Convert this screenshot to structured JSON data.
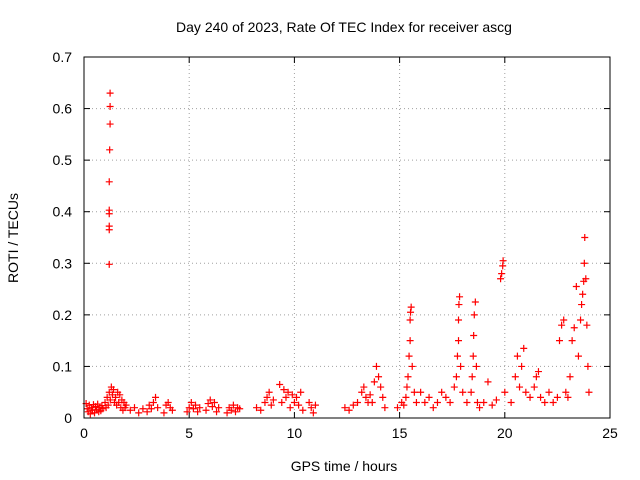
{
  "chart_data": {
    "type": "scatter",
    "title": "Day 240 of 2023, Rate Of TEC Index for receiver ascg",
    "xlabel": "GPS time / hours",
    "ylabel": "ROTI / TECUs",
    "xlim": [
      0,
      25
    ],
    "ylim": [
      0,
      0.7
    ],
    "xticks": [
      0,
      5,
      10,
      15,
      20,
      25
    ],
    "yticks": [
      0,
      0.1,
      0.2,
      0.3,
      0.4,
      0.5,
      0.6,
      0.7
    ],
    "xtick_labels": [
      "0",
      "5",
      "10",
      "15",
      "20",
      "25"
    ],
    "ytick_labels": [
      "0",
      "0.1",
      "0.2",
      "0.3",
      "0.4",
      "0.5",
      "0.6",
      "0.7"
    ],
    "grid": true,
    "marker": "+",
    "colors": {
      "points": "#ff0000",
      "grid": "#a0a0a0",
      "axes": "#000000"
    },
    "series": [
      {
        "name": "ROTI",
        "points": [
          [
            0.1,
            0.028
          ],
          [
            0.15,
            0.018
          ],
          [
            0.2,
            0.012
          ],
          [
            0.25,
            0.025
          ],
          [
            0.3,
            0.008
          ],
          [
            0.35,
            0.02
          ],
          [
            0.4,
            0.015
          ],
          [
            0.45,
            0.026
          ],
          [
            0.5,
            0.01
          ],
          [
            0.55,
            0.022
          ],
          [
            0.6,
            0.016
          ],
          [
            0.65,
            0.027
          ],
          [
            0.7,
            0.012
          ],
          [
            0.75,
            0.02
          ],
          [
            0.8,
            0.014
          ],
          [
            0.85,
            0.024
          ],
          [
            0.9,
            0.018
          ],
          [
            1.0,
            0.03
          ],
          [
            1.05,
            0.02
          ],
          [
            1.1,
            0.04
          ],
          [
            1.15,
            0.025
          ],
          [
            1.2,
            0.05
          ],
          [
            1.25,
            0.035
          ],
          [
            1.3,
            0.06
          ],
          [
            1.35,
            0.045
          ],
          [
            1.4,
            0.055
          ],
          [
            1.45,
            0.03
          ],
          [
            1.5,
            0.04
          ],
          [
            1.55,
            0.025
          ],
          [
            1.6,
            0.05
          ],
          [
            1.65,
            0.03
          ],
          [
            1.7,
            0.045
          ],
          [
            1.75,
            0.02
          ],
          [
            1.8,
            0.035
          ],
          [
            1.85,
            0.015
          ],
          [
            1.9,
            0.03
          ],
          [
            1.95,
            0.02
          ],
          [
            2.0,
            0.025
          ],
          [
            1.2,
            0.298
          ],
          [
            1.2,
            0.365
          ],
          [
            1.2,
            0.372
          ],
          [
            1.2,
            0.396
          ],
          [
            1.2,
            0.403
          ],
          [
            1.2,
            0.458
          ],
          [
            1.22,
            0.52
          ],
          [
            1.24,
            0.57
          ],
          [
            1.24,
            0.604
          ],
          [
            1.24,
            0.63
          ],
          [
            2.2,
            0.015
          ],
          [
            2.4,
            0.02
          ],
          [
            2.6,
            0.01
          ],
          [
            2.8,
            0.018
          ],
          [
            3.0,
            0.012
          ],
          [
            3.1,
            0.025
          ],
          [
            3.2,
            0.018
          ],
          [
            3.3,
            0.03
          ],
          [
            3.4,
            0.04
          ],
          [
            3.5,
            0.02
          ],
          [
            3.8,
            0.01
          ],
          [
            3.9,
            0.025
          ],
          [
            4.0,
            0.03
          ],
          [
            4.1,
            0.02
          ],
          [
            4.2,
            0.015
          ],
          [
            4.9,
            0.012
          ],
          [
            5.0,
            0.02
          ],
          [
            5.1,
            0.03
          ],
          [
            5.2,
            0.018
          ],
          [
            5.3,
            0.025
          ],
          [
            5.4,
            0.012
          ],
          [
            5.5,
            0.02
          ],
          [
            5.8,
            0.015
          ],
          [
            5.9,
            0.028
          ],
          [
            6.0,
            0.035
          ],
          [
            6.1,
            0.022
          ],
          [
            6.2,
            0.03
          ],
          [
            6.3,
            0.012
          ],
          [
            6.4,
            0.02
          ],
          [
            6.8,
            0.01
          ],
          [
            6.9,
            0.02
          ],
          [
            7.0,
            0.015
          ],
          [
            7.1,
            0.025
          ],
          [
            7.2,
            0.012
          ],
          [
            7.3,
            0.02
          ],
          [
            7.4,
            0.018
          ],
          [
            8.2,
            0.02
          ],
          [
            8.4,
            0.015
          ],
          [
            8.6,
            0.03
          ],
          [
            8.7,
            0.04
          ],
          [
            8.8,
            0.05
          ],
          [
            8.9,
            0.025
          ],
          [
            9.0,
            0.035
          ],
          [
            9.3,
            0.065
          ],
          [
            9.4,
            0.03
          ],
          [
            9.5,
            0.055
          ],
          [
            9.6,
            0.04
          ],
          [
            9.7,
            0.05
          ],
          [
            9.8,
            0.02
          ],
          [
            9.9,
            0.045
          ],
          [
            10.0,
            0.03
          ],
          [
            10.1,
            0.04
          ],
          [
            10.2,
            0.025
          ],
          [
            10.3,
            0.05
          ],
          [
            10.4,
            0.015
          ],
          [
            10.7,
            0.03
          ],
          [
            10.8,
            0.02
          ],
          [
            10.9,
            0.01
          ],
          [
            11.0,
            0.025
          ],
          [
            12.4,
            0.02
          ],
          [
            12.6,
            0.015
          ],
          [
            12.8,
            0.025
          ],
          [
            13.0,
            0.03
          ],
          [
            13.2,
            0.05
          ],
          [
            13.3,
            0.06
          ],
          [
            13.4,
            0.04
          ],
          [
            13.5,
            0.03
          ],
          [
            13.6,
            0.045
          ],
          [
            13.7,
            0.03
          ],
          [
            13.8,
            0.07
          ],
          [
            13.9,
            0.1
          ],
          [
            14.0,
            0.08
          ],
          [
            14.1,
            0.06
          ],
          [
            14.2,
            0.04
          ],
          [
            14.3,
            0.02
          ],
          [
            14.9,
            0.02
          ],
          [
            15.1,
            0.03
          ],
          [
            15.2,
            0.025
          ],
          [
            15.3,
            0.04
          ],
          [
            15.35,
            0.06
          ],
          [
            15.4,
            0.08
          ],
          [
            15.45,
            0.12
          ],
          [
            15.5,
            0.15
          ],
          [
            15.5,
            0.19
          ],
          [
            15.52,
            0.205
          ],
          [
            15.55,
            0.215
          ],
          [
            15.6,
            0.1
          ],
          [
            15.7,
            0.05
          ],
          [
            15.8,
            0.03
          ],
          [
            16.0,
            0.05
          ],
          [
            16.2,
            0.03
          ],
          [
            16.4,
            0.04
          ],
          [
            16.6,
            0.02
          ],
          [
            16.8,
            0.03
          ],
          [
            17.0,
            0.05
          ],
          [
            17.2,
            0.04
          ],
          [
            17.4,
            0.03
          ],
          [
            17.6,
            0.06
          ],
          [
            17.7,
            0.08
          ],
          [
            17.75,
            0.12
          ],
          [
            17.8,
            0.15
          ],
          [
            17.8,
            0.19
          ],
          [
            17.82,
            0.22
          ],
          [
            17.85,
            0.235
          ],
          [
            17.9,
            0.1
          ],
          [
            18.0,
            0.05
          ],
          [
            18.2,
            0.03
          ],
          [
            18.4,
            0.05
          ],
          [
            18.45,
            0.08
          ],
          [
            18.5,
            0.12
          ],
          [
            18.52,
            0.16
          ],
          [
            18.55,
            0.2
          ],
          [
            18.6,
            0.225
          ],
          [
            18.65,
            0.1
          ],
          [
            18.7,
            0.03
          ],
          [
            18.8,
            0.02
          ],
          [
            19.0,
            0.03
          ],
          [
            19.2,
            0.07
          ],
          [
            19.4,
            0.025
          ],
          [
            19.6,
            0.035
          ],
          [
            19.8,
            0.27
          ],
          [
            19.85,
            0.28
          ],
          [
            19.9,
            0.295
          ],
          [
            19.92,
            0.305
          ],
          [
            20.0,
            0.05
          ],
          [
            20.3,
            0.03
          ],
          [
            20.5,
            0.08
          ],
          [
            20.6,
            0.12
          ],
          [
            20.7,
            0.06
          ],
          [
            20.8,
            0.1
          ],
          [
            20.9,
            0.135
          ],
          [
            21.0,
            0.05
          ],
          [
            21.2,
            0.04
          ],
          [
            21.4,
            0.06
          ],
          [
            21.5,
            0.08
          ],
          [
            21.6,
            0.09
          ],
          [
            21.7,
            0.04
          ],
          [
            21.9,
            0.03
          ],
          [
            22.1,
            0.05
          ],
          [
            22.3,
            0.03
          ],
          [
            22.5,
            0.04
          ],
          [
            22.6,
            0.15
          ],
          [
            22.7,
            0.18
          ],
          [
            22.8,
            0.19
          ],
          [
            22.9,
            0.05
          ],
          [
            23.0,
            0.04
          ],
          [
            23.1,
            0.08
          ],
          [
            23.2,
            0.15
          ],
          [
            23.3,
            0.175
          ],
          [
            23.4,
            0.255
          ],
          [
            23.5,
            0.12
          ],
          [
            23.6,
            0.19
          ],
          [
            23.65,
            0.22
          ],
          [
            23.7,
            0.24
          ],
          [
            23.75,
            0.265
          ],
          [
            23.78,
            0.3
          ],
          [
            23.8,
            0.35
          ],
          [
            23.85,
            0.27
          ],
          [
            23.9,
            0.18
          ],
          [
            23.95,
            0.1
          ],
          [
            24.0,
            0.05
          ]
        ]
      }
    ]
  }
}
